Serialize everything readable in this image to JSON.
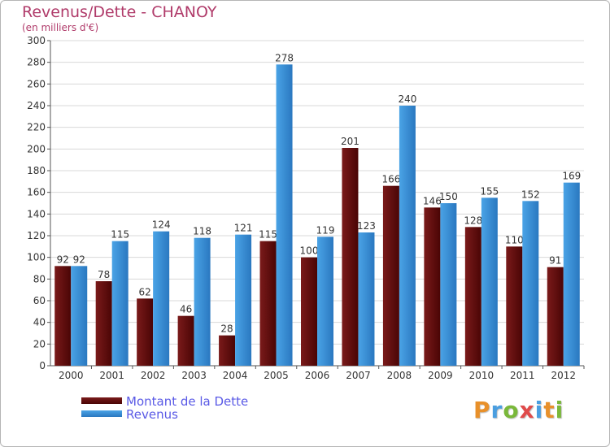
{
  "colors": {
    "debt": "#7a1a1a",
    "debt_dark": "#4a0505",
    "revenue": "#4aa3e6",
    "revenue_dark": "#2a78c0",
    "title": "#b03b6a",
    "legend_text": "#5a5ae6"
  },
  "logo": {
    "letters": [
      "P",
      "r",
      "o",
      "x",
      "i",
      "t",
      "i"
    ],
    "colors": [
      "#e8902a",
      "#4a9ee0",
      "#7ab83a",
      "#e04a4a",
      "#4a9ee0",
      "#e8902a",
      "#7ab83a"
    ]
  },
  "chart_data": {
    "type": "bar",
    "title": "Revenus/Dette - CHANOY",
    "subtitle": "(en milliers d'€)",
    "xlabel": "",
    "ylabel": "",
    "categories": [
      "2000",
      "2001",
      "2002",
      "2003",
      "2004",
      "2005",
      "2006",
      "2007",
      "2008",
      "2009",
      "2010",
      "2011",
      "2012"
    ],
    "series": [
      {
        "name": "Montant de la Dette",
        "values": [
          92,
          78,
          62,
          46,
          28,
          115,
          100,
          201,
          166,
          146,
          128,
          110,
          91
        ]
      },
      {
        "name": "Revenus",
        "values": [
          92,
          115,
          124,
          118,
          121,
          278,
          119,
          123,
          240,
          150,
          155,
          152,
          169
        ]
      }
    ],
    "ylim": [
      0,
      300
    ],
    "yticks": [
      0,
      20,
      40,
      60,
      80,
      100,
      120,
      140,
      160,
      180,
      200,
      220,
      240,
      260,
      280,
      300
    ],
    "grid": true,
    "legend_position": "bottom-left"
  }
}
